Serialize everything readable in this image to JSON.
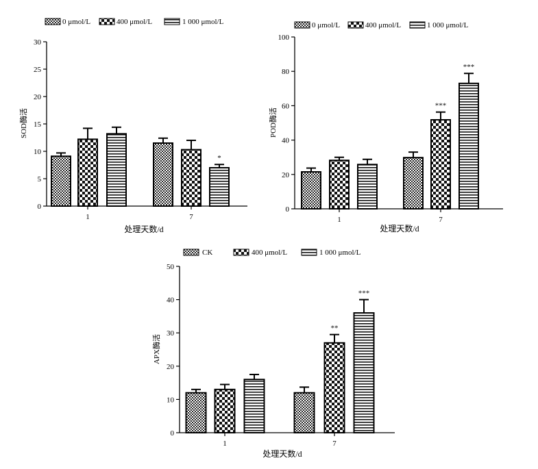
{
  "chart_data": [
    {
      "type": "bar",
      "id": "sod",
      "categories": [
        "1",
        "7"
      ],
      "series": [
        {
          "name": "0 μmol/L",
          "pattern": "dense",
          "values": [
            9.1,
            11.5
          ],
          "errors": [
            0.6,
            0.9
          ],
          "sig": [
            "",
            ""
          ]
        },
        {
          "name": "400 μmol/L",
          "pattern": "check",
          "values": [
            12.2,
            10.3
          ],
          "errors": [
            2.0,
            1.7
          ],
          "sig": [
            "",
            ""
          ]
        },
        {
          "name": "1 000 μmol/L",
          "pattern": "hstripe",
          "values": [
            13.2,
            7.0
          ],
          "errors": [
            1.2,
            0.6
          ],
          "sig": [
            "",
            "*"
          ]
        }
      ],
      "ylim": [
        0,
        30
      ],
      "yticks": [
        "0",
        "5",
        "10",
        "15",
        "20",
        "25",
        "30"
      ],
      "ylabel": "SOD酶活",
      "xlabel": "处理天数/d"
    },
    {
      "type": "bar",
      "id": "pod",
      "categories": [
        "1",
        "7"
      ],
      "series": [
        {
          "name": "0 μmol/L",
          "pattern": "dense",
          "values": [
            21.5,
            29.8
          ],
          "errors": [
            2.2,
            3.2
          ],
          "sig": [
            "",
            ""
          ]
        },
        {
          "name": "400 μmol/L",
          "pattern": "check",
          "values": [
            28.2,
            51.8
          ],
          "errors": [
            1.8,
            4.5
          ],
          "sig": [
            "",
            "***"
          ]
        },
        {
          "name": "1 000 μmol/L",
          "pattern": "hstripe",
          "values": [
            25.8,
            73.0
          ],
          "errors": [
            3.0,
            5.8
          ],
          "sig": [
            "",
            "***"
          ]
        }
      ],
      "ylim": [
        0,
        100
      ],
      "yticks": [
        "0",
        "20",
        "40",
        "60",
        "80",
        "100"
      ],
      "ylabel": "POD酶活",
      "xlabel": "处理天数/d"
    },
    {
      "type": "bar",
      "id": "apx",
      "categories": [
        "1",
        "7"
      ],
      "series": [
        {
          "name": "CK",
          "pattern": "dense",
          "values": [
            12.0,
            12.0
          ],
          "errors": [
            1.0,
            1.7
          ],
          "sig": [
            "",
            ""
          ]
        },
        {
          "name": "400 μmol/L",
          "pattern": "check",
          "values": [
            13.0,
            27.0
          ],
          "errors": [
            1.5,
            2.5
          ],
          "sig": [
            "",
            "**"
          ]
        },
        {
          "name": "1 000 μmol/L",
          "pattern": "hstripe",
          "values": [
            16.0,
            36.0
          ],
          "errors": [
            1.5,
            4.0
          ],
          "sig": [
            "",
            "***"
          ]
        }
      ],
      "ylim": [
        0,
        50
      ],
      "yticks": [
        "0",
        "10",
        "20",
        "30",
        "40",
        "50"
      ],
      "ylabel": "APX酶活",
      "xlabel": "处理天数/d"
    }
  ]
}
